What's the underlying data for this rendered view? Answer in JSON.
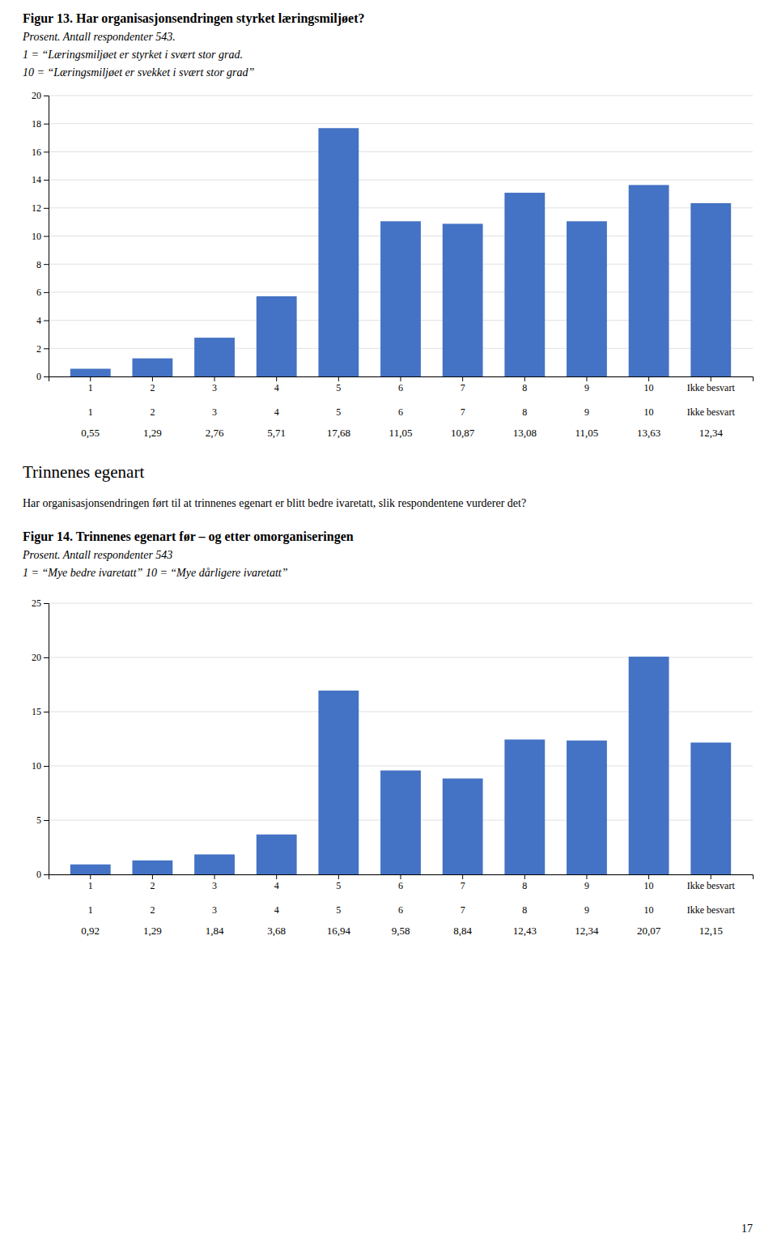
{
  "chart_data": [
    {
      "type": "bar",
      "title": "Figur 13. Har organisasjonsendringen styrket læringsmiljøet?",
      "subtitle": [
        "Prosent. Antall respondenter 543.",
        "1 =  “Læringsmiljøet er styrket i svært stor grad.",
        "10 = “Læringsmiljøet er svekket i svært stor grad”"
      ],
      "categories": [
        "1",
        "2",
        "3",
        "4",
        "5",
        "6",
        "7",
        "8",
        "9",
        "10",
        "Ikke besvart"
      ],
      "values": [
        0.55,
        1.29,
        2.76,
        5.71,
        17.68,
        11.05,
        10.87,
        13.08,
        11.05,
        13.63,
        12.34
      ],
      "value_labels": [
        "0,55",
        "1,29",
        "2,76",
        "5,71",
        "17,68",
        "11,05",
        "10,87",
        "13,08",
        "11,05",
        "13,63",
        "12,34"
      ],
      "data_labels": true,
      "color": "#4472C4",
      "ylim": [
        0,
        20
      ],
      "yticks": [
        0,
        2,
        4,
        6,
        8,
        10,
        12,
        14,
        16,
        18,
        20
      ],
      "grid": true
    },
    {
      "type": "bar",
      "title": "Figur 14. Trinnenes egenart før – og etter omorganiseringen",
      "subtitle": [
        "Prosent. Antall respondenter 543",
        "1 = “Mye bedre ivaretatt”   10 = “Mye dårligere ivaretatt”"
      ],
      "categories": [
        "1",
        "2",
        "3",
        "4",
        "5",
        "6",
        "7",
        "8",
        "9",
        "10",
        "Ikke besvart"
      ],
      "values": [
        0.92,
        1.29,
        1.84,
        3.68,
        16.94,
        9.58,
        8.84,
        12.43,
        12.34,
        20.07,
        12.15
      ],
      "value_labels": [
        "0,92",
        "1,29",
        "1,84",
        "3,68",
        "16,94",
        "9,58",
        "8,84",
        "12,43",
        "12,34",
        "20,07",
        "12,15"
      ],
      "data_labels": true,
      "color": "#4472C4",
      "ylim": [
        0,
        25
      ],
      "yticks": [
        0,
        5,
        10,
        15,
        20,
        25
      ],
      "grid": true
    }
  ],
  "section_title": "Trinnenes egenart",
  "section_text": "Har organisasjonsendringen ført til at trinnenes egenart er blitt bedre ivaretatt, slik respondentene vurderer det?",
  "page_number": "17"
}
